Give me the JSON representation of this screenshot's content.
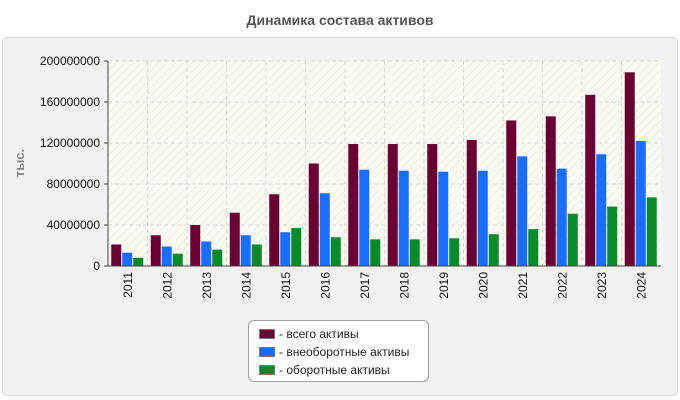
{
  "chart_data": {
    "type": "bar",
    "title": "Динамика состава активов",
    "ylabel": "тыс.",
    "xlabel": "",
    "ylim": [
      0,
      200000000
    ],
    "yticks": [
      "0",
      "40000000",
      "80000000",
      "120000000",
      "160000000",
      "200000000"
    ],
    "categories": [
      "2011",
      "2012",
      "2013",
      "2014",
      "2015",
      "2016",
      "2017",
      "2018",
      "2019",
      "2020",
      "2021",
      "2022",
      "2023",
      "2024"
    ],
    "series": [
      {
        "name": "- всего активы",
        "color": "#6b0033",
        "values": [
          21000000,
          30000000,
          40000000,
          52000000,
          70000000,
          100000000,
          119000000,
          119000000,
          119000000,
          123000000,
          142000000,
          146000000,
          167000000,
          189000000
        ]
      },
      {
        "name": "- внеоборотные активы",
        "color": "#1a6eff",
        "values": [
          13000000,
          19000000,
          24000000,
          30000000,
          33000000,
          71000000,
          94000000,
          93000000,
          92000000,
          93000000,
          107000000,
          95000000,
          109000000,
          122000000
        ]
      },
      {
        "name": "- оборотные активы",
        "color": "#0b8a2a",
        "values": [
          8000000,
          12000000,
          16000000,
          21000000,
          37000000,
          28000000,
          26000000,
          26000000,
          27000000,
          31000000,
          36000000,
          51000000,
          58000000,
          67000000
        ]
      }
    ]
  }
}
